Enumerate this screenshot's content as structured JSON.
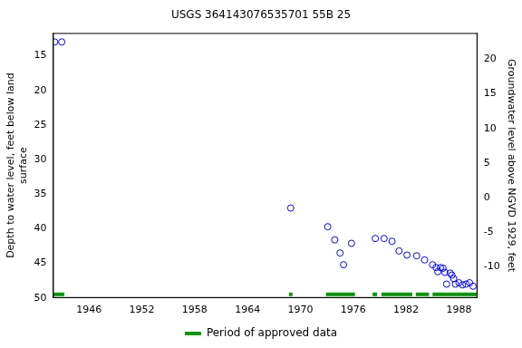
{
  "chart_data": {
    "type": "scatter",
    "title": "USGS 364143076535701 55B 25",
    "y_label": [
      "Depth to water level, feet below land",
      "surface"
    ],
    "y2_label": "Groundwater level above NGVD 1929, feet",
    "x": [
      1942.1,
      1942.9,
      1968.9,
      1973.1,
      1973.9,
      1974.5,
      1974.9,
      1975.8,
      1978.5,
      1979.5,
      1980.4,
      1981.2,
      1982.1,
      1983.2,
      1984.1,
      1985.0,
      1985.4,
      1985.6,
      1985.9,
      1986.2,
      1986.4,
      1986.6,
      1987.0,
      1987.2,
      1987.4,
      1987.6,
      1988.0,
      1988.4,
      1988.8,
      1989.2,
      1989.6
    ],
    "values": [
      13.0,
      13.0,
      37.0,
      39.7,
      41.6,
      43.5,
      45.2,
      42.1,
      41.4,
      41.4,
      41.8,
      43.2,
      43.8,
      43.9,
      44.5,
      45.2,
      45.6,
      46.2,
      45.6,
      45.7,
      46.3,
      48.0,
      46.4,
      46.7,
      47.2,
      48.0,
      47.8,
      48.1,
      48.0,
      47.8,
      48.3
    ],
    "color": "#0000ff",
    "marker": "circle",
    "xlim": [
      1941.9,
      1990.1
    ],
    "xticks": [
      1946,
      1952,
      1958,
      1964,
      1970,
      1976,
      1982,
      1988
    ],
    "ylim": [
      50,
      11.7
    ],
    "yticks": [
      15,
      20,
      25,
      30,
      35,
      40,
      45,
      50
    ],
    "y2lim": [
      -14.5,
      23.8
    ],
    "y2ticks": [
      -10,
      -5,
      0,
      5,
      10,
      15,
      20
    ],
    "approved_label": "Period of approved data",
    "approved_color": "#009900",
    "approved_periods": [
      [
        1941.9,
        1943.2
      ],
      [
        1968.7,
        1969.1
      ],
      [
        1972.9,
        1976.2
      ],
      [
        1978.2,
        1978.7
      ],
      [
        1979.2,
        1982.7
      ],
      [
        1983.1,
        1984.6
      ],
      [
        1985.0,
        1990.0
      ]
    ],
    "legend": "bottom",
    "grid": false
  }
}
